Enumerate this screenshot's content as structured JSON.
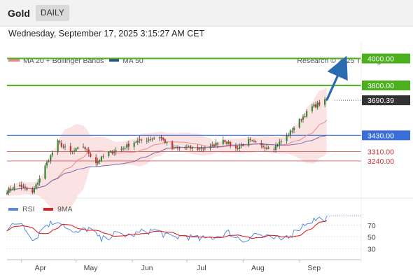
{
  "header": {
    "title": "Gold",
    "period": "DAILY"
  },
  "datetime": "Wednesday, September 17, 2025 3:15:27 AM CET",
  "source": "Research © 2025 Trading Central",
  "colors": {
    "support": "#3b6fd6",
    "resistance": "#4caf1c",
    "red": "#cc3333",
    "candle_up": "#2e8b2e",
    "candle_down": "#d03030",
    "ma50": "#7a6aa6",
    "ma20": "#e88a8a",
    "bb_fill": "#fbdada",
    "arrow": "#2a6ab0",
    "current": "#333333",
    "rsi": "#5b8ad6",
    "rsi_ma": "#dd2222"
  },
  "chart_data": [
    {
      "type": "candlestick",
      "legend": [
        "MA 20 + Bollinger Bands",
        "MA 50"
      ],
      "x_ticks": [
        "Apr",
        "May",
        "Jun",
        "Jul",
        "Aug",
        "Sep"
      ],
      "x_tick_dates": [
        "2025-04-01",
        "2025-05-01",
        "2025-06-01",
        "2025-07-01",
        "2025-08-01",
        "2025-09-01"
      ],
      "x_range": [
        "2025-03-24",
        "2025-10-05"
      ],
      "y_range": [
        2980,
        4060
      ],
      "current_price": 3690.39,
      "levels": [
        {
          "value": 4000.0,
          "label": "4000.00",
          "type": "resistance"
        },
        {
          "value": 3800.0,
          "label": "3800.00",
          "type": "resistance"
        },
        {
          "value": 3690.39,
          "label": "3690.39",
          "type": "current"
        },
        {
          "value": 3430.0,
          "label": "3430.00",
          "type": "pivot"
        },
        {
          "value": 3310.0,
          "label": "3310.00",
          "type": "support"
        },
        {
          "value": 3240.0,
          "label": "3240.00",
          "type": "support"
        }
      ],
      "close_anchors": [
        [
          "2025-03-24",
          3020
        ],
        [
          "2025-03-31",
          3060
        ],
        [
          "2025-04-07",
          3000
        ],
        [
          "2025-04-14",
          3200
        ],
        [
          "2025-04-21",
          3380
        ],
        [
          "2025-04-28",
          3300
        ],
        [
          "2025-05-05",
          3350
        ],
        [
          "2025-05-12",
          3230
        ],
        [
          "2025-05-19",
          3300
        ],
        [
          "2025-05-26",
          3330
        ],
        [
          "2025-06-02",
          3380
        ],
        [
          "2025-06-09",
          3400
        ],
        [
          "2025-06-16",
          3420
        ],
        [
          "2025-06-23",
          3330
        ],
        [
          "2025-06-30",
          3340
        ],
        [
          "2025-07-07",
          3330
        ],
        [
          "2025-07-14",
          3340
        ],
        [
          "2025-07-21",
          3400
        ],
        [
          "2025-07-28",
          3330
        ],
        [
          "2025-08-04",
          3390
        ],
        [
          "2025-08-11",
          3350
        ],
        [
          "2025-08-18",
          3340
        ],
        [
          "2025-08-25",
          3420
        ],
        [
          "2025-09-01",
          3540
        ],
        [
          "2025-09-08",
          3640
        ],
        [
          "2025-09-16",
          3690
        ]
      ],
      "arrow": {
        "from": [
          "2025-09-16",
          3690
        ],
        "to": [
          "2025-09-25",
          3960
        ]
      }
    },
    {
      "type": "line",
      "legend": [
        "RSI",
        "9MA"
      ],
      "y_ticks": [
        70,
        50,
        30
      ],
      "y_range": [
        15,
        90
      ],
      "rsi_anchors": [
        [
          "2025-03-24",
          65
        ],
        [
          "2025-04-01",
          75
        ],
        [
          "2025-04-08",
          45
        ],
        [
          "2025-04-14",
          70
        ],
        [
          "2025-04-22",
          78
        ],
        [
          "2025-04-30",
          55
        ],
        [
          "2025-05-08",
          65
        ],
        [
          "2025-05-15",
          45
        ],
        [
          "2025-05-22",
          55
        ],
        [
          "2025-05-30",
          52
        ],
        [
          "2025-06-06",
          58
        ],
        [
          "2025-06-14",
          62
        ],
        [
          "2025-06-22",
          48
        ],
        [
          "2025-06-30",
          52
        ],
        [
          "2025-07-08",
          46
        ],
        [
          "2025-07-16",
          50
        ],
        [
          "2025-07-24",
          58
        ],
        [
          "2025-08-01",
          44
        ],
        [
          "2025-08-08",
          56
        ],
        [
          "2025-08-15",
          48
        ],
        [
          "2025-08-22",
          46
        ],
        [
          "2025-08-29",
          58
        ],
        [
          "2025-09-05",
          75
        ],
        [
          "2025-09-10",
          80
        ],
        [
          "2025-09-16",
          82
        ]
      ]
    }
  ]
}
